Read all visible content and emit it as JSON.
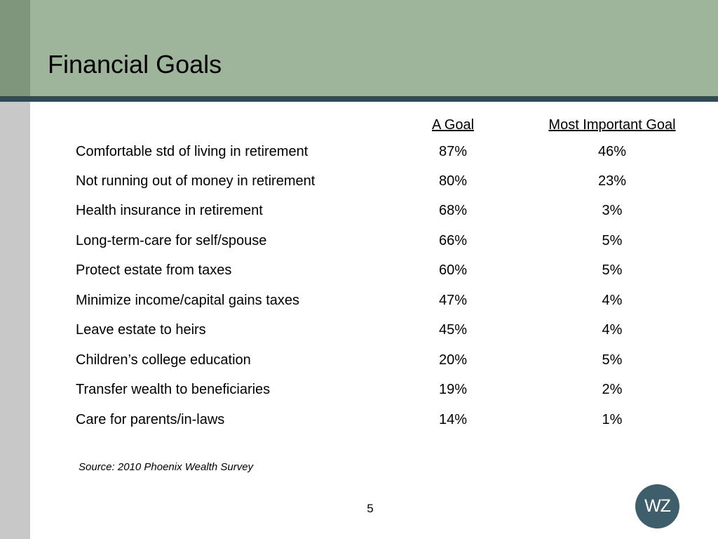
{
  "slide": {
    "title": "Financial Goals",
    "page_number": "5",
    "source": "Source: 2010 Phoenix Wealth Survey",
    "logo_text": "WZ"
  },
  "table": {
    "headers": [
      "A Goal",
      "Most Important Goal"
    ],
    "rows": [
      {
        "label": "Comfortable std of living in retirement",
        "a_goal": "87%",
        "most_important": "46%"
      },
      {
        "label": "Not running out of money in retirement",
        "a_goal": "80%",
        "most_important": "23%"
      },
      {
        "label": "Health insurance in retirement",
        "a_goal": "68%",
        "most_important": "3%"
      },
      {
        "label": "Long-term-care for self/spouse",
        "a_goal": "66%",
        "most_important": "5%"
      },
      {
        "label": "Protect estate from taxes",
        "a_goal": "60%",
        "most_important": "5%"
      },
      {
        "label": "Minimize income/capital gains taxes",
        "a_goal": "47%",
        "most_important": "4%"
      },
      {
        "label": "Leave estate to heirs",
        "a_goal": "45%",
        "most_important": "4%"
      },
      {
        "label": "Children’s college education",
        "a_goal": "20%",
        "most_important": "5%"
      },
      {
        "label": "Transfer wealth to beneficiaries",
        "a_goal": "19%",
        "most_important": "2%"
      },
      {
        "label": "Care for parents/in-laws",
        "a_goal": "14%",
        "most_important": "1%"
      }
    ]
  },
  "colors": {
    "header_bg": "#9eb59b",
    "header_bar": "#324a53",
    "left_strip": "#c8c8c8",
    "logo_bg": "#3f5e6b"
  }
}
